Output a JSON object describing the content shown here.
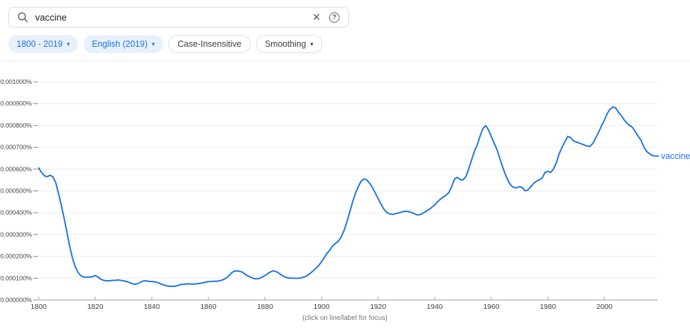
{
  "search": {
    "value": "vaccine",
    "placeholder": ""
  },
  "icons": {
    "clear": "✕",
    "help": "?",
    "dropdown_arrow": "▾"
  },
  "filters": {
    "time_range": "1800 - 2019",
    "corpus": "English (2019)",
    "case_sensitivity": "Case-Insensitive",
    "smoothing": "Smoothing"
  },
  "chart_data": {
    "type": "line",
    "title": "",
    "xlabel": "",
    "ylabel": "",
    "grid": true,
    "xlim": [
      1800,
      2019
    ],
    "ylim": [
      0,
      0.001
    ],
    "x_start": 1800,
    "x_ticks": [
      1800,
      1820,
      1840,
      1860,
      1880,
      1900,
      1920,
      1940,
      1960,
      1980,
      2000
    ],
    "y_ticks": [
      "0.000000%",
      "0.000100%",
      "0.000200%",
      "0.000300%",
      "0.000400%",
      "0.000500%",
      "0.000600%",
      "0.000700%",
      "0.000800%",
      "0.000900%",
      "0.001000%"
    ],
    "footnote": "(click on line/label for focus)",
    "series": [
      {
        "name": "vaccine",
        "color": "#1a73e8",
        "x_start": 1800,
        "x_end": 2019,
        "values": [
          0.000605,
          0.000585,
          0.00057,
          0.000565,
          0.000572,
          0.000565,
          0.00054,
          0.00049,
          0.000435,
          0.000375,
          0.00031,
          0.000245,
          0.00019,
          0.00015,
          0.000125,
          0.00011,
          0.000105,
          0.000105,
          0.000105,
          0.000107,
          0.000112,
          0.000105,
          9.5e-05,
          9e-05,
          8.8e-05,
          8.8e-05,
          9e-05,
          9e-05,
          9.2e-05,
          9e-05,
          8.8e-05,
          8.5e-05,
          8e-05,
          7.5e-05,
          7.2e-05,
          7.5e-05,
          8.2e-05,
          8.7e-05,
          8.8e-05,
          8.5e-05,
          8.5e-05,
          8.3e-05,
          8e-05,
          7.5e-05,
          7e-05,
          6.6e-05,
          6.3e-05,
          6.2e-05,
          6.3e-05,
          6.5e-05,
          7e-05,
          7.2e-05,
          7.3e-05,
          7.4e-05,
          7.3e-05,
          7.3e-05,
          7.4e-05,
          7.6e-05,
          7.8e-05,
          8.2e-05,
          8.4e-05,
          8.5e-05,
          8.6e-05,
          8.6e-05,
          8.8e-05,
          9.2e-05,
          9.8e-05,
          0.000108,
          0.000122,
          0.000132,
          0.000133,
          0.000132,
          0.000128,
          0.000118,
          0.00011,
          0.000104,
          9.8e-05,
          9.7e-05,
          9.9e-05,
          0.000105,
          0.000112,
          0.000121,
          0.000129,
          0.000134,
          0.00013,
          0.000122,
          0.000113,
          0.000106,
          0.000102,
          0.0001,
          0.0001,
          9.9e-05,
          0.0001,
          0.000102,
          0.000106,
          0.000112,
          0.000122,
          0.000133,
          0.000145,
          0.000158,
          0.000175,
          0.000195,
          0.000215,
          0.00023,
          0.00025,
          0.00026,
          0.00027,
          0.00029,
          0.00032,
          0.00036,
          0.000405,
          0.00045,
          0.00049,
          0.00052,
          0.000545,
          0.000555,
          0.00055,
          0.000535,
          0.000515,
          0.00049,
          0.000465,
          0.00044,
          0.000417,
          0.000402,
          0.000395,
          0.000392,
          0.000395,
          0.000398,
          0.000402,
          0.000406,
          0.000407,
          0.000404,
          0.0004,
          0.000394,
          0.00039,
          0.000392,
          0.000399,
          0.000407,
          0.000415,
          0.000425,
          0.000436,
          0.00045,
          0.000462,
          0.000472,
          0.00048,
          0.000492,
          0.00052,
          0.000555,
          0.000562,
          0.000552,
          0.00055,
          0.000565,
          0.0006,
          0.00064,
          0.00068,
          0.00071,
          0.00075,
          0.000785,
          0.0008,
          0.00078,
          0.00075,
          0.00072,
          0.00069,
          0.00065,
          0.00061,
          0.000575,
          0.000545,
          0.000525,
          0.000515,
          0.000515,
          0.00052,
          0.000515,
          0.0005,
          0.000505,
          0.00052,
          0.000535,
          0.000545,
          0.00055,
          0.00056,
          0.000585,
          0.00059,
          0.000585,
          0.0006,
          0.00063,
          0.00067,
          0.0007,
          0.000725,
          0.00075,
          0.000745,
          0.00073,
          0.000725,
          0.00072,
          0.000715,
          0.00071,
          0.000705,
          0.000705,
          0.00072,
          0.000745,
          0.00077,
          0.0008,
          0.000825,
          0.000855,
          0.000875,
          0.000885,
          0.00088,
          0.00086,
          0.000845,
          0.000825,
          0.00081,
          0.0008,
          0.00079,
          0.00077,
          0.00075,
          0.00073,
          0.0007,
          0.00068,
          0.00067,
          0.000662,
          0.00066,
          0.00066
        ]
      }
    ]
  }
}
